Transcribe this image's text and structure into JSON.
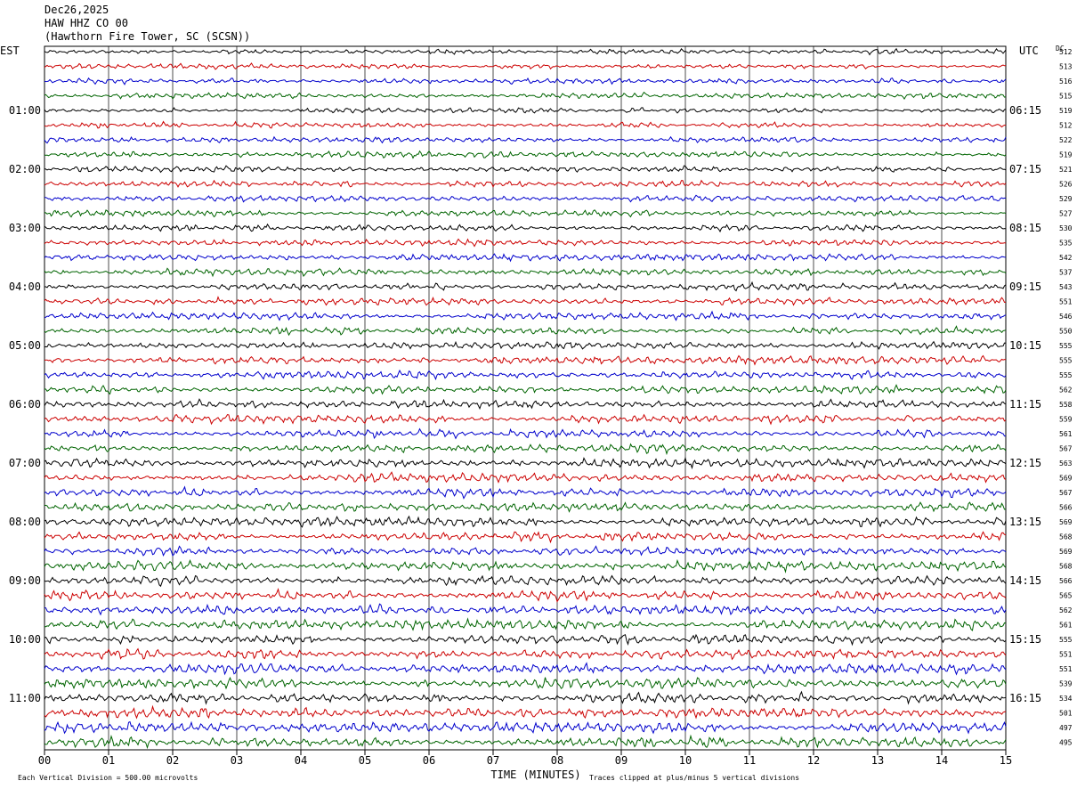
{
  "header": {
    "date": "Dec26,2025",
    "station": "HAW HHZ CO 00",
    "location": "(Hawthorn Fire Tower, SC (SCSN))"
  },
  "labels": {
    "left_tz": "EST",
    "right_tz": "UTC",
    "dc": "DC",
    "xlabel": "TIME (MINUTES)",
    "scale_note": "Each Vertical Division =  500.00 microvolts",
    "clip_note": "Traces clipped at plus/minus 5 vertical divisions"
  },
  "chart_data": {
    "type": "line",
    "title": "HAW HHZ CO 00",
    "xlabel": "TIME (MINUTES)",
    "xlim": [
      0,
      15
    ],
    "x_ticks": [
      "00",
      "01",
      "02",
      "03",
      "04",
      "05",
      "06",
      "07",
      "08",
      "09",
      "10",
      "11",
      "12",
      "13",
      "14",
      "15"
    ],
    "traces_per_hour": 4,
    "trace_colors": [
      "#000000",
      "#cc0000",
      "#0000cc",
      "#006400"
    ],
    "left_hour_labels": [
      "01:00",
      "02:00",
      "03:00",
      "04:00",
      "05:00",
      "06:00",
      "07:00",
      "08:00",
      "09:00",
      "10:00",
      "11:00"
    ],
    "right_hour_labels": [
      "06:15",
      "07:15",
      "08:15",
      "09:15",
      "10:15",
      "11:15",
      "12:15",
      "13:15",
      "14:15",
      "15:15",
      "16:15"
    ],
    "dc_offsets": [
      512,
      513,
      516,
      515,
      519,
      512,
      522,
      519,
      521,
      526,
      529,
      527,
      530,
      535,
      542,
      537,
      543,
      551,
      546,
      550,
      555,
      555,
      555,
      562,
      558,
      559,
      561,
      567,
      563,
      569,
      567,
      566,
      569,
      568,
      569,
      568,
      566,
      565,
      562,
      561,
      555,
      551,
      551,
      539,
      534,
      501,
      497,
      495
    ]
  }
}
